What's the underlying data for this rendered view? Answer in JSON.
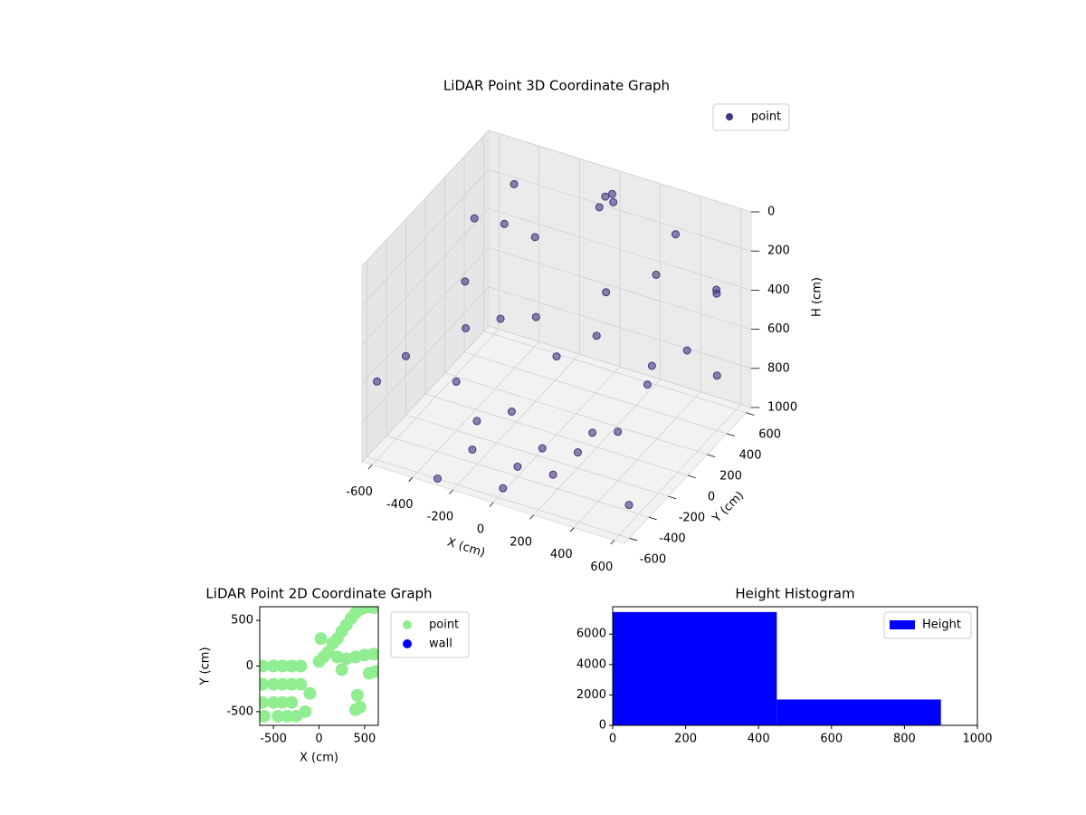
{
  "chart_data": [
    {
      "type": "scatter3d",
      "title": "LiDAR Point 3D Coordinate Graph",
      "xlabel": "X (cm)",
      "ylabel": "Y (cm)",
      "zlabel": "H (cm)",
      "xlim": [
        -650,
        650
      ],
      "ylim": [
        -650,
        650
      ],
      "zlim": [
        1000,
        0
      ],
      "xticks": [
        -600,
        -400,
        -200,
        0,
        200,
        400,
        600
      ],
      "yticks": [
        -600,
        -400,
        -200,
        0,
        200,
        400,
        600
      ],
      "zticks": [
        0,
        200,
        400,
        600,
        800,
        1000
      ],
      "grid": true,
      "legend": "upper right",
      "series": [
        {
          "name": "point",
          "color": "#46327e",
          "x": [
            -600,
            -450,
            -250,
            0,
            250,
            450,
            600,
            -500,
            -350,
            -150,
            50,
            250,
            400,
            550,
            -550,
            -400,
            -200,
            0,
            200,
            400,
            550,
            -300,
            -150,
            0,
            150,
            300,
            0,
            30,
            -20,
            10,
            -650,
            650,
            -500,
            600,
            -300,
            300,
            -600,
            100
          ],
          "y": [
            400,
            0,
            -300,
            -400,
            -300,
            0,
            400,
            500,
            150,
            -150,
            -250,
            -150,
            150,
            500,
            200,
            -200,
            -450,
            -550,
            -450,
            -200,
            200,
            400,
            100,
            0,
            100,
            400,
            500,
            520,
            480,
            550,
            -200,
            300,
            600,
            -500,
            -600,
            600,
            -600,
            300
          ],
          "z": [
            300,
            600,
            850,
            950,
            850,
            600,
            300,
            350,
            600,
            850,
            920,
            830,
            600,
            350,
            500,
            750,
            900,
            980,
            900,
            750,
            500,
            300,
            500,
            600,
            500,
            300,
            50,
            80,
            100,
            60,
            700,
            650,
            200,
            900,
            1000,
            200,
            600,
            400
          ]
        }
      ]
    },
    {
      "type": "scatter",
      "title": "LiDAR Point 2D Coordinate Graph",
      "xlabel": "X (cm)",
      "ylabel": "Y (cm)",
      "xlim": [
        -650,
        650
      ],
      "ylim": [
        -650,
        650
      ],
      "xticks": [
        -500,
        0,
        500
      ],
      "yticks": [
        -500,
        0,
        500
      ],
      "legend": "outside right",
      "series": [
        {
          "name": "point",
          "color": "#90ee90",
          "x": [
            -620,
            -500,
            -400,
            -300,
            -200,
            -620,
            -500,
            -400,
            -300,
            -200,
            -620,
            -500,
            -400,
            -300,
            -600,
            -450,
            -350,
            -250,
            -150,
            -100,
            0,
            50,
            100,
            150,
            200,
            250,
            300,
            350,
            400,
            450,
            500,
            550,
            600,
            200,
            300,
            400,
            500,
            600,
            20,
            420,
            400,
            450,
            550,
            620,
            250
          ],
          "values": [
            0,
            0,
            0,
            0,
            0,
            -200,
            -200,
            -200,
            -200,
            -200,
            -400,
            -400,
            -400,
            -400,
            -550,
            -550,
            -550,
            -550,
            -500,
            -300,
            50,
            100,
            150,
            250,
            300,
            380,
            450,
            520,
            580,
            620,
            640,
            650,
            640,
            100,
            80,
            100,
            120,
            130,
            300,
            -320,
            -480,
            -450,
            -80,
            -60,
            -40
          ]
        },
        {
          "name": "wall",
          "color": "#0000ff",
          "x": [],
          "values": []
        }
      ]
    },
    {
      "type": "histogram",
      "title": "Height Histogram",
      "bins": [
        0,
        450,
        900,
        1350
      ],
      "xlim": [
        0,
        1000
      ],
      "ylim": [
        0,
        7800
      ],
      "xticks": [
        0,
        200,
        400,
        600,
        800,
        1000
      ],
      "yticks": [
        0,
        2000,
        4000,
        6000
      ],
      "legend": "upper right",
      "series": [
        {
          "name": "Height",
          "color": "#0000ff",
          "values": [
            7450,
            1700,
            30
          ]
        }
      ]
    }
  ]
}
